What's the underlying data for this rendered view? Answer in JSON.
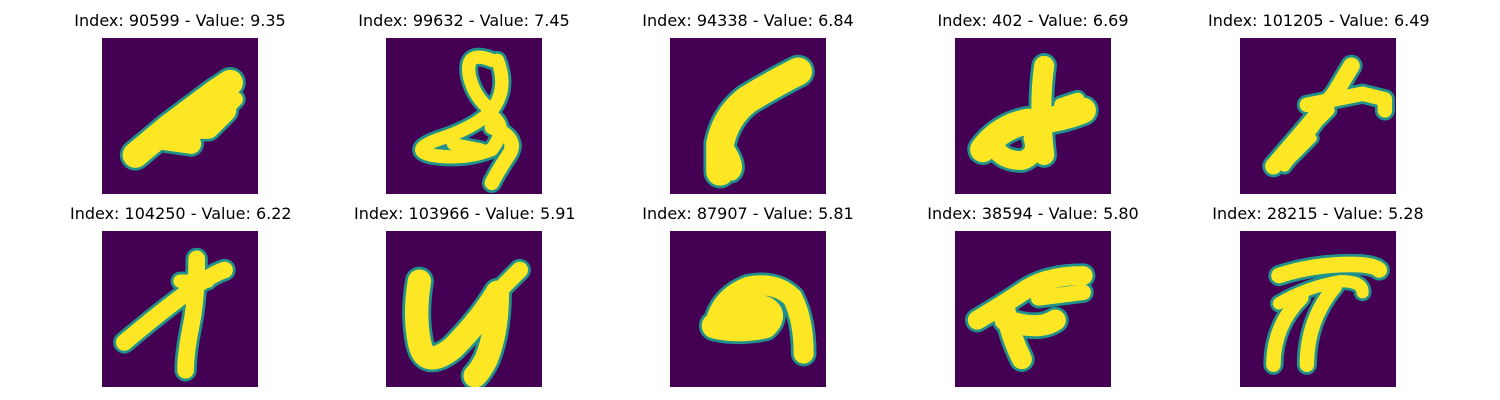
{
  "figure": {
    "background_color": "#440154",
    "stroke_color": "#fde725",
    "edge_color": "#21918c",
    "panels": [
      {
        "title": "Index: 90599 - Value: 9.35",
        "index": 90599,
        "value": 9.35
      },
      {
        "title": "Index: 99632 - Value: 7.45",
        "index": 99632,
        "value": 7.45
      },
      {
        "title": "Index: 94338 - Value: 6.84",
        "index": 94338,
        "value": 6.84
      },
      {
        "title": "Index: 402 - Value: 6.69",
        "index": 402,
        "value": 6.69
      },
      {
        "title": "Index: 101205 - Value: 6.49",
        "index": 101205,
        "value": 6.49
      },
      {
        "title": "Index: 104250 - Value: 6.22",
        "index": 104250,
        "value": 6.22
      },
      {
        "title": "Index: 103966 - Value: 5.91",
        "index": 103966,
        "value": 5.91
      },
      {
        "title": "Index: 87907 - Value: 5.81",
        "index": 87907,
        "value": 5.81
      },
      {
        "title": "Index: 38594 - Value: 5.80",
        "index": 38594,
        "value": 5.8
      },
      {
        "title": "Index: 28215 - Value: 5.28",
        "index": 28215,
        "value": 5.28
      }
    ]
  }
}
